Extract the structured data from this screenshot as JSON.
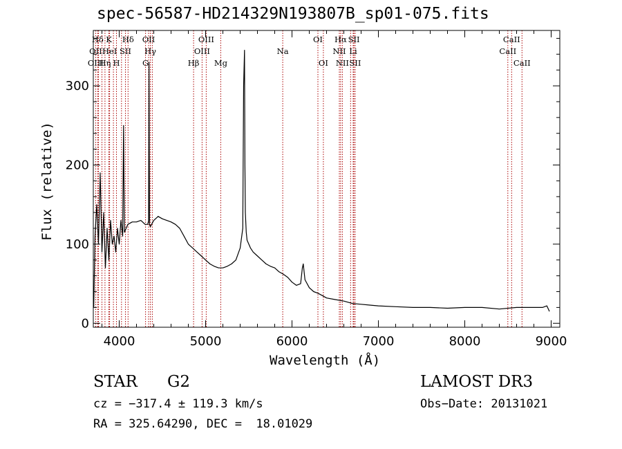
{
  "chart_data": {
    "type": "line",
    "title": "spec-56587-HD214329N193807B_sp01-075.fits",
    "xlabel": "Wavelength (Å)",
    "ylabel": "Flux (relative)",
    "xlim": [
      3700,
      9100
    ],
    "ylim": [
      -5,
      370
    ],
    "x_ticks": [
      4000,
      5000,
      6000,
      7000,
      8000,
      9000
    ],
    "y_ticks": [
      0,
      100,
      200,
      300
    ],
    "grid": false,
    "line_color": "#000000",
    "marker_color": "#aa0000",
    "series": [
      {
        "x": [
          3705,
          3720,
          3740,
          3760,
          3780,
          3800,
          3820,
          3840,
          3860,
          3880,
          3900,
          3920,
          3940,
          3960,
          3980,
          4000,
          4020,
          4040,
          4050,
          4060,
          4080,
          4100,
          4150,
          4200,
          4250,
          4300,
          4330,
          4340,
          4345,
          4350,
          4360,
          4400,
          4450,
          4500,
          4550,
          4600,
          4650,
          4700,
          4750,
          4800,
          4850,
          4900,
          4950,
          5000,
          5050,
          5100,
          5150,
          5200,
          5250,
          5300,
          5350,
          5400,
          5430,
          5440,
          5450,
          5455,
          5460,
          5470,
          5480,
          5500,
          5520,
          5550,
          5600,
          5650,
          5700,
          5750,
          5800,
          5850,
          5900,
          5950,
          6000,
          6050,
          6100,
          6120,
          6130,
          6150,
          6200,
          6250,
          6300,
          6350,
          6400,
          6500,
          6600,
          6700,
          6800,
          6900,
          7000,
          7200,
          7400,
          7600,
          7800,
          8000,
          8200,
          8400,
          8600,
          8800,
          8900,
          8950,
          8980
        ],
        "y": [
          20,
          110,
          150,
          100,
          190,
          90,
          140,
          70,
          120,
          80,
          130,
          100,
          110,
          90,
          120,
          100,
          130,
          110,
          250,
          115,
          120,
          125,
          128,
          128,
          130,
          125,
          125,
          130,
          330,
          125,
          122,
          130,
          135,
          132,
          130,
          128,
          125,
          120,
          110,
          100,
          95,
          90,
          85,
          80,
          75,
          72,
          70,
          70,
          72,
          75,
          80,
          95,
          120,
          300,
          345,
          200,
          140,
          115,
          105,
          100,
          95,
          90,
          85,
          80,
          75,
          72,
          70,
          65,
          62,
          58,
          52,
          48,
          50,
          70,
          75,
          55,
          45,
          40,
          38,
          35,
          32,
          30,
          28,
          25,
          24,
          23,
          22,
          21,
          20,
          20,
          19,
          20,
          20,
          18,
          20,
          20,
          20,
          22,
          15
        ]
      }
    ],
    "line_markers": [
      {
        "label": "Hδ",
        "wavelength": 3750,
        "row": 1
      },
      {
        "label": "K",
        "wavelength": 3880,
        "row": 1
      },
      {
        "label": "Hδ",
        "wavelength": 4102,
        "row": 1
      },
      {
        "label": "OII",
        "wavelength": 4340,
        "row": 1
      },
      {
        "label": "OIII",
        "wavelength": 5007,
        "row": 1
      },
      {
        "label": "OI",
        "wavelength": 6300,
        "row": 1
      },
      {
        "label": "Hα",
        "wavelength": 6563,
        "row": 1
      },
      {
        "label": "SII",
        "wavelength": 6717,
        "row": 1
      },
      {
        "label": "CaII",
        "wavelength": 8542,
        "row": 1
      },
      {
        "label": "OII",
        "wavelength": 3727,
        "row": 2
      },
      {
        "label": "HeI",
        "wavelength": 3889,
        "row": 2
      },
      {
        "label": "SII",
        "wavelength": 4072,
        "row": 2
      },
      {
        "label": "Hγ",
        "wavelength": 4361,
        "row": 2
      },
      {
        "label": "OIII",
        "wavelength": 4959,
        "row": 2
      },
      {
        "label": "Na",
        "wavelength": 5893,
        "row": 2
      },
      {
        "label": "NII",
        "wavelength": 6548,
        "row": 2
      },
      {
        "label": "Li",
        "wavelength": 6708,
        "row": 2
      },
      {
        "label": "CaII",
        "wavelength": 8498,
        "row": 2
      },
      {
        "label": "OIII",
        "wavelength": 3727,
        "row": 3
      },
      {
        "label": "Hη",
        "wavelength": 3835,
        "row": 3
      },
      {
        "label": "H",
        "wavelength": 3968,
        "row": 3
      },
      {
        "label": "G",
        "wavelength": 4305,
        "row": 3
      },
      {
        "label": "Hβ",
        "wavelength": 4861,
        "row": 3
      },
      {
        "label": "Mg",
        "wavelength": 5175,
        "row": 3
      },
      {
        "label": "OI",
        "wavelength": 6363,
        "row": 3
      },
      {
        "label": "NII",
        "wavelength": 6583,
        "row": 3
      },
      {
        "label": "SII",
        "wavelength": 6731,
        "row": 3
      },
      {
        "label": "CaII",
        "wavelength": 8662,
        "row": 3
      }
    ],
    "extra_marker_lines": [
      3760,
      3800,
      3933,
      4026,
      4383,
      6678
    ],
    "annotations": {
      "class": "STAR",
      "subclass": "G2",
      "survey": "LAMOST DR3",
      "redshift": "cz = −317.4 ± 119.3 km/s",
      "obs_date": "Obs−Date: 20131021",
      "coords": "RA = 325.64290, DEC =  18.01029"
    }
  }
}
